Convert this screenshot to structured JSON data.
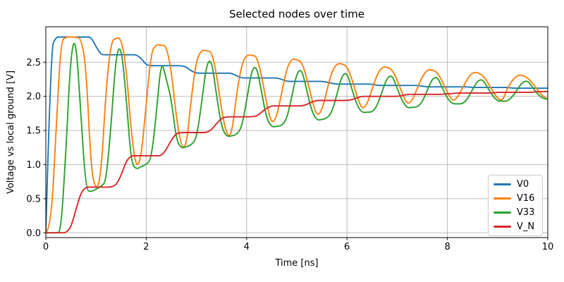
{
  "chart_data": {
    "type": "line",
    "title": "Selected nodes over time",
    "xlabel": "Time [ns]",
    "ylabel": "Voltage vs local ground [V]",
    "xlim": [
      0,
      10
    ],
    "ylim": [
      -0.07,
      3.02
    ],
    "x_ticks": [
      0,
      2,
      4,
      6,
      8,
      10
    ],
    "y_ticks": [
      0.0,
      0.5,
      1.0,
      1.5,
      2.0,
      2.5
    ],
    "grid": true,
    "grid_color": "#b4b4b4",
    "spine_color": "#000000",
    "legend_position": "lower right",
    "x_start": 0,
    "x_step": 0.1,
    "series": [
      {
        "name": "V0",
        "color": "#1f77b4",
        "values": [
          0.0,
          2.7,
          2.87,
          2.87,
          2.87,
          2.87,
          2.87,
          2.87,
          2.87,
          2.87,
          2.73,
          2.61,
          2.61,
          2.61,
          2.61,
          2.61,
          2.61,
          2.61,
          2.61,
          2.56,
          2.46,
          2.45,
          2.45,
          2.45,
          2.45,
          2.45,
          2.45,
          2.45,
          2.43,
          2.37,
          2.34,
          2.34,
          2.34,
          2.34,
          2.34,
          2.34,
          2.34,
          2.34,
          2.3,
          2.27,
          2.27,
          2.27,
          2.27,
          2.27,
          2.27,
          2.27,
          2.27,
          2.25,
          2.22,
          2.22,
          2.22,
          2.22,
          2.22,
          2.22,
          2.22,
          2.22,
          2.21,
          2.19,
          2.18,
          2.18,
          2.18,
          2.18,
          2.18,
          2.18,
          2.18,
          2.18,
          2.16,
          2.16,
          2.16,
          2.16,
          2.16,
          2.16,
          2.16,
          2.16,
          2.16,
          2.15,
          2.14,
          2.14,
          2.14,
          2.14,
          2.14,
          2.14,
          2.14,
          2.14,
          2.14,
          2.13,
          2.13,
          2.13,
          2.13,
          2.13,
          2.13,
          2.13,
          2.13,
          2.12,
          2.12,
          2.12,
          2.12,
          2.12,
          2.12,
          2.12,
          2.12
        ]
      },
      {
        "name": "V16",
        "color": "#ff7f0e",
        "values": [
          0.0,
          0.06,
          1.44,
          2.81,
          2.87,
          2.87,
          2.87,
          2.85,
          2.45,
          0.95,
          0.6,
          0.85,
          2.1,
          2.8,
          2.86,
          2.85,
          2.44,
          1.48,
          0.94,
          1.1,
          1.89,
          2.65,
          2.76,
          2.75,
          2.74,
          2.38,
          1.69,
          1.26,
          1.26,
          1.99,
          2.53,
          2.68,
          2.67,
          2.66,
          2.34,
          1.8,
          1.44,
          1.42,
          2.03,
          2.46,
          2.61,
          2.6,
          2.59,
          2.3,
          1.89,
          1.59,
          1.7,
          2.06,
          2.41,
          2.55,
          2.54,
          2.5,
          2.27,
          1.95,
          1.71,
          1.79,
          2.09,
          2.37,
          2.48,
          2.48,
          2.44,
          2.25,
          2.0,
          1.81,
          1.88,
          2.11,
          2.32,
          2.43,
          2.43,
          2.39,
          2.24,
          2.04,
          1.88,
          1.94,
          2.12,
          2.29,
          2.39,
          2.39,
          2.35,
          2.22,
          2.06,
          1.93,
          1.98,
          2.12,
          2.26,
          2.35,
          2.35,
          2.31,
          2.21,
          2.08,
          1.97,
          1.93,
          2.13,
          2.24,
          2.31,
          2.31,
          2.27,
          2.19,
          2.09,
          2.0,
          1.96
        ]
      },
      {
        "name": "V33",
        "color": "#2ca02c",
        "values": [
          0.0,
          0.0,
          0.0,
          0.01,
          1.19,
          2.66,
          2.86,
          1.69,
          0.63,
          0.6,
          0.64,
          0.68,
          0.75,
          1.58,
          2.62,
          2.75,
          2.0,
          1.03,
          0.93,
          0.97,
          1.0,
          1.08,
          1.73,
          2.55,
          2.25,
          1.96,
          1.36,
          1.24,
          1.26,
          1.29,
          1.38,
          1.88,
          2.47,
          2.55,
          2.02,
          1.55,
          1.41,
          1.42,
          1.44,
          1.54,
          1.93,
          2.39,
          2.45,
          2.05,
          1.67,
          1.55,
          1.56,
          1.57,
          1.67,
          1.99,
          2.35,
          2.4,
          2.08,
          1.78,
          1.65,
          1.66,
          1.68,
          1.77,
          2.03,
          2.31,
          2.35,
          2.1,
          1.87,
          1.76,
          1.77,
          1.77,
          1.86,
          2.07,
          2.28,
          2.31,
          2.12,
          1.93,
          1.83,
          1.84,
          1.84,
          1.92,
          2.09,
          2.26,
          2.29,
          2.12,
          1.97,
          1.89,
          1.89,
          1.89,
          1.96,
          2.1,
          2.23,
          2.25,
          2.13,
          2.01,
          1.93,
          1.93,
          1.93,
          2.0,
          2.11,
          2.21,
          2.23,
          2.13,
          2.03,
          1.97,
          1.96
        ]
      },
      {
        "name": "V_N",
        "color": "#d62728",
        "values": [
          0.0,
          0.0,
          0.0,
          0.0,
          0.0,
          0.08,
          0.34,
          0.59,
          0.67,
          0.67,
          0.67,
          0.67,
          0.67,
          0.67,
          0.7,
          0.84,
          1.05,
          1.13,
          1.13,
          1.13,
          1.13,
          1.13,
          1.13,
          1.13,
          1.22,
          1.36,
          1.46,
          1.47,
          1.47,
          1.47,
          1.47,
          1.47,
          1.47,
          1.51,
          1.6,
          1.68,
          1.7,
          1.7,
          1.7,
          1.7,
          1.7,
          1.7,
          1.71,
          1.77,
          1.83,
          1.86,
          1.86,
          1.86,
          1.86,
          1.86,
          1.86,
          1.86,
          1.88,
          1.92,
          1.94,
          1.94,
          1.94,
          1.94,
          1.94,
          1.94,
          1.94,
          1.95,
          1.98,
          2.0,
          2.0,
          2.0,
          2.0,
          2.0,
          2.0,
          2.0,
          2.0,
          2.01,
          2.03,
          2.03,
          2.03,
          2.03,
          2.03,
          2.03,
          2.03,
          2.03,
          2.04,
          2.04,
          2.05,
          2.05,
          2.05,
          2.05,
          2.05,
          2.05,
          2.05,
          2.05,
          2.06,
          2.06,
          2.06,
          2.06,
          2.06,
          2.06,
          2.06,
          2.06,
          2.07,
          2.07,
          2.07
        ]
      }
    ]
  }
}
